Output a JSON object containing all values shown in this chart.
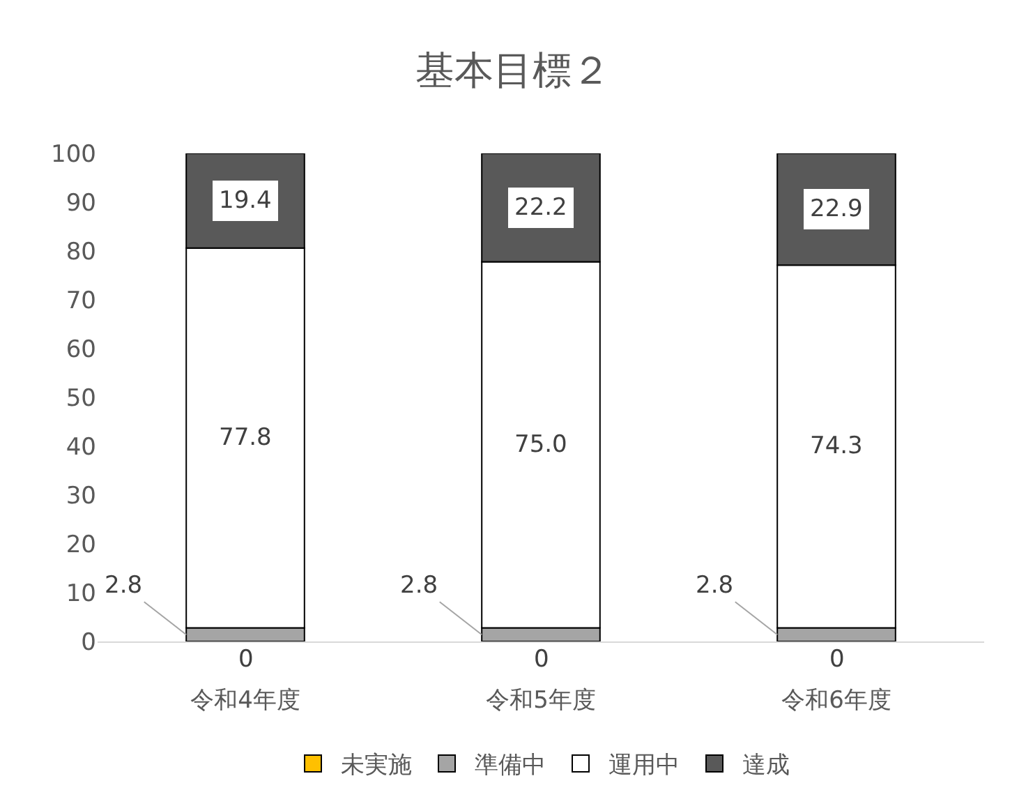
{
  "chart_data": {
    "type": "bar",
    "stacked": true,
    "title": "基本目標２",
    "categories": [
      "令和4年度",
      "令和5年度",
      "令和6年度"
    ],
    "series": [
      {
        "name": "未実施",
        "color": "#ffc000",
        "values": [
          0,
          0,
          0
        ],
        "value_labels": [
          "0",
          "0",
          "0"
        ]
      },
      {
        "name": "準備中",
        "color": "#a5a5a5",
        "values": [
          2.8,
          2.8,
          2.8
        ],
        "value_labels": [
          "2.8",
          "2.8",
          "2.8"
        ]
      },
      {
        "name": "運用中",
        "color": "#ffffff",
        "values": [
          77.8,
          75.0,
          74.3
        ],
        "value_labels": [
          "77.8",
          "75.0",
          "74.3"
        ]
      },
      {
        "name": "達成",
        "color": "#595959",
        "values": [
          19.4,
          22.2,
          22.9
        ],
        "value_labels": [
          "19.4",
          "22.2",
          "22.9"
        ]
      }
    ],
    "ylim": [
      0,
      100
    ],
    "yticks": [
      0,
      10,
      20,
      30,
      40,
      50,
      60,
      70,
      80,
      90,
      100
    ],
    "grid": false,
    "legend": "bottom"
  }
}
